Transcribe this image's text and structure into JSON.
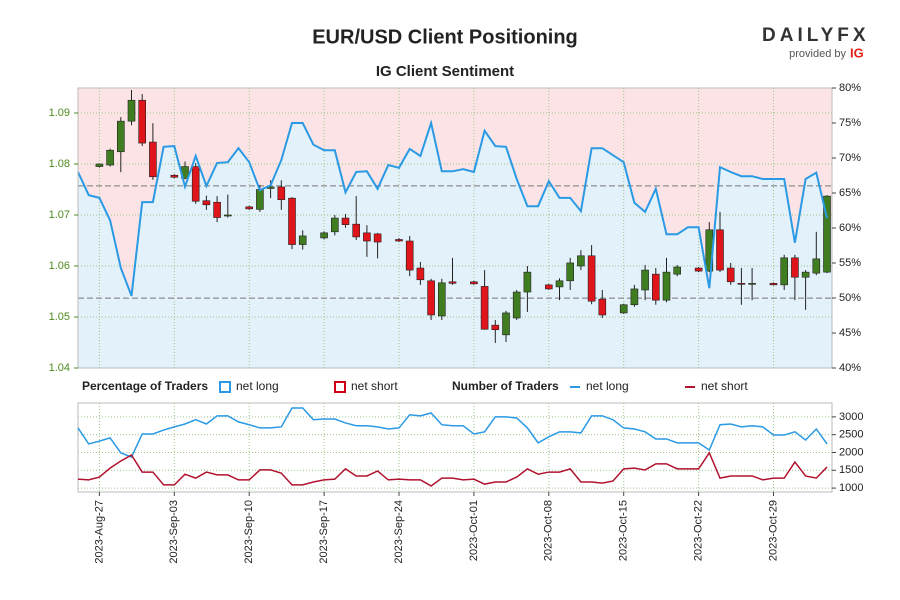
{
  "logo": {
    "name": "DAILYFX",
    "tagline": "provided by",
    "brand": "IG"
  },
  "chart_data": [
    {
      "type": "candlestick",
      "title": "EUR/USD Client Positioning",
      "subtitle": "IG Client Sentiment",
      "legend_title": "Percentage of Traders",
      "x": [
        "2023-08-25",
        "2023-08-26",
        "2023-08-27",
        "2023-08-28",
        "2023-08-29",
        "2023-08-30",
        "2023-08-31",
        "2023-09-01",
        "2023-09-02",
        "2023-09-03",
        "2023-09-04",
        "2023-09-05",
        "2023-09-06",
        "2023-09-07",
        "2023-09-08",
        "2023-09-09",
        "2023-09-10",
        "2023-09-11",
        "2023-09-12",
        "2023-09-13",
        "2023-09-14",
        "2023-09-15",
        "2023-09-16",
        "2023-09-17",
        "2023-09-18",
        "2023-09-19",
        "2023-09-20",
        "2023-09-21",
        "2023-09-22",
        "2023-09-23",
        "2023-09-24",
        "2023-09-25",
        "2023-09-26",
        "2023-09-27",
        "2023-09-28",
        "2023-09-29",
        "2023-09-30",
        "2023-10-01",
        "2023-10-02",
        "2023-10-03",
        "2023-10-04",
        "2023-10-05",
        "2023-10-06",
        "2023-10-07",
        "2023-10-08",
        "2023-10-09",
        "2023-10-10",
        "2023-10-11",
        "2023-10-12",
        "2023-10-13",
        "2023-10-14",
        "2023-10-15",
        "2023-10-16",
        "2023-10-17",
        "2023-10-18",
        "2023-10-19",
        "2023-10-20",
        "2023-10-21",
        "2023-10-22",
        "2023-10-23",
        "2023-10-24",
        "2023-10-25",
        "2023-10-26",
        "2023-10-27",
        "2023-10-28",
        "2023-10-29",
        "2023-10-30",
        "2023-10-31",
        "2023-11-01",
        "2023-11-02",
        "2023-11-03"
      ],
      "open": [
        null,
        null,
        1.0795,
        1.0798,
        1.0824,
        1.0884,
        1.0925,
        1.0843,
        null,
        1.0778,
        1.0772,
        1.0795,
        1.0728,
        1.0725,
        1.0698,
        null,
        1.0716,
        1.0711,
        1.0752,
        1.0755,
        1.0733,
        1.0642,
        null,
        1.0655,
        1.0667,
        1.0694,
        1.0682,
        1.0665,
        1.0663,
        null,
        1.0652,
        1.0649,
        1.0596,
        1.0571,
        1.0502,
        1.0569,
        null,
        1.0569,
        1.056,
        1.0484,
        1.0465,
        1.0498,
        1.0549,
        null,
        1.0563,
        1.0559,
        1.0571,
        1.06,
        1.062,
        1.0535,
        null,
        1.0508,
        1.0524,
        1.0553,
        1.0584,
        1.0533,
        1.0584,
        null,
        1.0596,
        1.059,
        1.0671,
        1.0596,
        1.0566,
        1.0565,
        null,
        1.0566,
        1.0563,
        1.0616,
        1.0578,
        1.0586,
        1.0588
      ],
      "high": [
        null,
        null,
        1.0801,
        1.083,
        1.0892,
        1.0945,
        1.0937,
        1.088,
        null,
        1.078,
        1.0805,
        1.0802,
        1.0738,
        1.0737,
        1.074,
        null,
        1.0718,
        1.0759,
        1.0768,
        1.0768,
        1.0735,
        1.067,
        null,
        1.0668,
        1.07,
        1.0702,
        1.0737,
        1.068,
        1.0665,
        null,
        1.0655,
        1.0659,
        1.0608,
        1.0575,
        1.0575,
        1.0616,
        null,
        1.0571,
        1.0592,
        1.0494,
        1.0512,
        1.0553,
        1.06,
        null,
        1.0565,
        1.0576,
        1.0616,
        1.0631,
        1.0641,
        1.0553,
        null,
        1.0526,
        1.0563,
        1.0602,
        1.0596,
        1.0616,
        1.0602,
        null,
        1.0598,
        1.0686,
        1.0706,
        1.0606,
        1.0596,
        1.0596,
        null,
        1.0568,
        1.0622,
        1.0622,
        1.0592,
        1.0667,
        1.0739
      ],
      "low": [
        null,
        null,
        1.0793,
        1.0795,
        1.0784,
        1.0876,
        1.0835,
        1.0769,
        null,
        1.0772,
        1.077,
        1.0722,
        1.071,
        1.0686,
        1.0695,
        null,
        1.071,
        1.0706,
        1.0733,
        1.071,
        1.0633,
        1.0632,
        null,
        1.0652,
        1.066,
        1.0675,
        1.0651,
        1.0618,
        1.0615,
        null,
        1.0647,
        1.058,
        1.0563,
        1.0494,
        1.0494,
        1.0563,
        null,
        1.0563,
        1.0475,
        1.0449,
        1.0451,
        1.0494,
        1.051,
        null,
        1.0553,
        1.0533,
        1.0553,
        1.0592,
        1.0525,
        1.0498,
        null,
        1.0506,
        1.052,
        1.0533,
        1.0524,
        1.0529,
        1.058,
        null,
        1.0588,
        1.0588,
        1.0588,
        1.0563,
        1.0524,
        1.0533,
        null,
        1.0562,
        1.0553,
        1.0533,
        1.0514,
        1.0582,
        1.0586
      ],
      "close": [
        null,
        null,
        1.08,
        1.0827,
        1.0884,
        1.0925,
        1.0841,
        1.0775,
        null,
        1.0774,
        1.0795,
        1.0727,
        1.072,
        1.0695,
        1.07,
        null,
        1.0712,
        1.075,
        1.0755,
        1.073,
        1.0642,
        1.0659,
        null,
        1.0665,
        1.0694,
        1.0681,
        1.0657,
        1.0649,
        1.0647,
        null,
        1.0649,
        1.0592,
        1.0573,
        1.0504,
        1.0567,
        1.0566,
        null,
        1.0565,
        1.0476,
        1.0475,
        1.0508,
        1.0549,
        1.0588,
        null,
        1.0555,
        1.0571,
        1.0606,
        1.062,
        1.0531,
        1.0504,
        null,
        1.0524,
        1.0555,
        1.0592,
        1.0533,
        1.0588,
        1.0598,
        null,
        1.059,
        1.0671,
        1.0592,
        1.0569,
        1.0565,
        1.0566,
        null,
        1.0563,
        1.0616,
        1.0578,
        1.0588,
        1.0614,
        1.0737
      ],
      "up_color": "#3f7d20",
      "down_color": "#e0141b",
      "ylim": [
        1.04,
        1.0949
      ],
      "yticks": [
        1.04,
        1.05,
        1.06,
        1.07,
        1.08,
        1.09
      ],
      "y2lim": [
        40,
        80
      ],
      "y2ticks": [
        {
          "value": 40,
          "label": "40%"
        },
        {
          "value": 45,
          "label": "45%"
        },
        {
          "value": 50,
          "label": "50%"
        },
        {
          "value": 55,
          "label": "55%"
        },
        {
          "value": 60,
          "label": "60%"
        },
        {
          "value": 65,
          "label": "65%"
        },
        {
          "value": 70,
          "label": "70%"
        },
        {
          "value": 75,
          "label": "75%"
        },
        {
          "value": 80,
          "label": "80%"
        }
      ],
      "hlines": [
        1.0757,
        1.0537
      ],
      "grid": true,
      "series": [
        {
          "name": "net long",
          "color": "#2a9ae4",
          "fill": "#e3f1fb",
          "axis": "y2",
          "values": [
            68.0,
            64.7,
            64.3,
            61.1,
            54.3,
            50.3,
            63.7,
            63.7,
            71.6,
            71.7,
            65.9,
            70.3,
            66.0,
            69.3,
            69.4,
            71.4,
            69.4,
            65.4,
            66.1,
            69.7,
            75.0,
            75.0,
            71.9,
            71.1,
            71.1,
            65.1,
            68.0,
            68.1,
            65.6,
            69.0,
            68.6,
            71.3,
            70.3,
            75.0,
            68.1,
            68.1,
            68.4,
            68.0,
            73.9,
            71.7,
            71.6,
            67.0,
            63.1,
            63.1,
            66.7,
            64.3,
            64.3,
            62.4,
            71.4,
            71.4,
            70.4,
            69.4,
            63.6,
            62.3,
            65.6,
            59.1,
            59.1,
            60.1,
            60.1,
            51.4,
            68.7,
            68.0,
            67.4,
            67.4,
            67.0,
            67.0,
            67.0,
            57.9,
            67.0,
            67.9,
            61.4
          ]
        },
        {
          "name": "net short",
          "color": "#d0021b",
          "fill": "#fce4e6"
        }
      ]
    },
    {
      "type": "line",
      "legend_title": "Number of Traders",
      "x": [
        "2023-08-25",
        "2023-08-26",
        "2023-08-27",
        "2023-08-28",
        "2023-08-29",
        "2023-08-30",
        "2023-08-31",
        "2023-09-01",
        "2023-09-02",
        "2023-09-03",
        "2023-09-04",
        "2023-09-05",
        "2023-09-06",
        "2023-09-07",
        "2023-09-08",
        "2023-09-09",
        "2023-09-10",
        "2023-09-11",
        "2023-09-12",
        "2023-09-13",
        "2023-09-14",
        "2023-09-15",
        "2023-09-16",
        "2023-09-17",
        "2023-09-18",
        "2023-09-19",
        "2023-09-20",
        "2023-09-21",
        "2023-09-22",
        "2023-09-23",
        "2023-09-24",
        "2023-09-25",
        "2023-09-26",
        "2023-09-27",
        "2023-09-28",
        "2023-09-29",
        "2023-09-30",
        "2023-10-01",
        "2023-10-02",
        "2023-10-03",
        "2023-10-04",
        "2023-10-05",
        "2023-10-06",
        "2023-10-07",
        "2023-10-08",
        "2023-10-09",
        "2023-10-10",
        "2023-10-11",
        "2023-10-12",
        "2023-10-13",
        "2023-10-14",
        "2023-10-15",
        "2023-10-16",
        "2023-10-17",
        "2023-10-18",
        "2023-10-19",
        "2023-10-20",
        "2023-10-21",
        "2023-10-22",
        "2023-10-23",
        "2023-10-24",
        "2023-10-25",
        "2023-10-26",
        "2023-10-27",
        "2023-10-28",
        "2023-10-29",
        "2023-10-30",
        "2023-10-31",
        "2023-11-01",
        "2023-11-02",
        "2023-11-03"
      ],
      "xticks": [
        {
          "value": "2023-08-27",
          "label": "2023-Aug-27"
        },
        {
          "value": "2023-09-03",
          "label": "2023-Sep-03"
        },
        {
          "value": "2023-09-10",
          "label": "2023-Sep-10"
        },
        {
          "value": "2023-09-17",
          "label": "2023-Sep-17"
        },
        {
          "value": "2023-09-24",
          "label": "2023-Sep-24"
        },
        {
          "value": "2023-10-01",
          "label": "2023-Oct-01"
        },
        {
          "value": "2023-10-08",
          "label": "2023-Oct-08"
        },
        {
          "value": "2023-10-15",
          "label": "2023-Oct-15"
        },
        {
          "value": "2023-10-22",
          "label": "2023-Oct-22"
        },
        {
          "value": "2023-10-29",
          "label": "2023-Oct-29"
        }
      ],
      "ylim": [
        890,
        3390
      ],
      "yticks": [
        1000,
        1500,
        2000,
        2500,
        3000
      ],
      "grid": true,
      "series": [
        {
          "name": "net long",
          "color": "#2a9ae4",
          "values": [
            2690,
            2240,
            2320,
            2410,
            1990,
            1870,
            2520,
            2520,
            2630,
            2720,
            2800,
            2920,
            2800,
            3030,
            3030,
            2860,
            2780,
            2690,
            2690,
            2720,
            3250,
            3250,
            2920,
            2940,
            2940,
            2830,
            2750,
            2750,
            2720,
            2660,
            2690,
            3060,
            3030,
            3110,
            2780,
            2750,
            2750,
            2520,
            2580,
            3000,
            3000,
            2970,
            2690,
            2270,
            2440,
            2580,
            2580,
            2550,
            3030,
            3030,
            2920,
            2690,
            2660,
            2580,
            2380,
            2380,
            2270,
            2270,
            2270,
            2070,
            2780,
            2800,
            2720,
            2750,
            2720,
            2490,
            2490,
            2580,
            2350,
            2660,
            2240
          ]
        },
        {
          "name": "net short",
          "color": "#b0132f",
          "values": [
            1250,
            1230,
            1310,
            1560,
            1760,
            1930,
            1450,
            1450,
            1090,
            1090,
            1390,
            1280,
            1450,
            1370,
            1370,
            1230,
            1230,
            1510,
            1510,
            1420,
            1090,
            1090,
            1170,
            1230,
            1250,
            1540,
            1340,
            1340,
            1480,
            1230,
            1250,
            1230,
            1230,
            1060,
            1280,
            1280,
            1230,
            1250,
            1110,
            1170,
            1170,
            1310,
            1540,
            1390,
            1450,
            1450,
            1540,
            1170,
            1170,
            1140,
            1200,
            1540,
            1560,
            1510,
            1680,
            1680,
            1540,
            1540,
            1540,
            1990,
            1280,
            1340,
            1340,
            1340,
            1230,
            1280,
            1280,
            1730,
            1340,
            1280,
            1590
          ]
        }
      ]
    }
  ]
}
